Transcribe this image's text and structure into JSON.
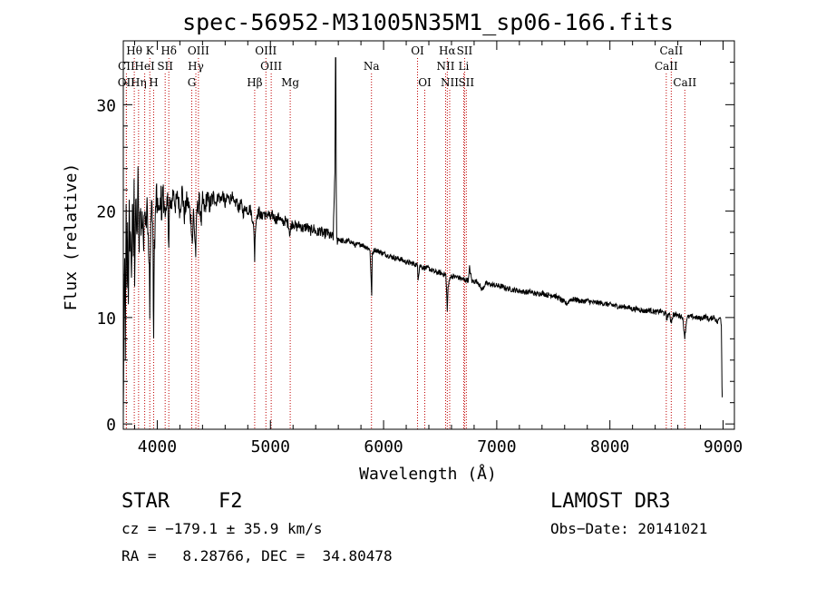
{
  "chart_data": {
    "type": "line",
    "title": "spec-56952-M31005N35M1_sp06-166.fits",
    "xlabel": "Wavelength (Å)",
    "ylabel": "Flux (relative)",
    "xlim": [
      3700,
      9100
    ],
    "ylim": [
      -0.5,
      36
    ],
    "xticks": [
      4000,
      5000,
      6000,
      7000,
      8000,
      9000
    ],
    "yticks": [
      0,
      10,
      20,
      30
    ],
    "grid": false,
    "series": [
      {
        "name": "spectrum",
        "anchors": [
          [
            3700,
            0.3
          ],
          [
            3705,
            9
          ],
          [
            3712,
            15
          ],
          [
            3718,
            7
          ],
          [
            3725,
            20
          ],
          [
            3732,
            12
          ],
          [
            3738,
            18
          ],
          [
            3745,
            11
          ],
          [
            3752,
            22
          ],
          [
            3758,
            15
          ],
          [
            3765,
            19
          ],
          [
            3772,
            13
          ],
          [
            3780,
            21
          ],
          [
            3788,
            16
          ],
          [
            3795,
            22
          ],
          [
            3800,
            14
          ],
          [
            3810,
            21
          ],
          [
            3820,
            17
          ],
          [
            3830,
            23
          ],
          [
            3840,
            16
          ],
          [
            3850,
            21
          ],
          [
            3860,
            18
          ],
          [
            3870,
            20
          ],
          [
            3880,
            16.5
          ],
          [
            3890,
            21.5
          ],
          [
            3900,
            19
          ],
          [
            3910,
            22
          ],
          [
            3920,
            17
          ],
          [
            3930,
            14
          ],
          [
            3934,
            9.5
          ],
          [
            3940,
            18
          ],
          [
            3950,
            21
          ],
          [
            3960,
            19
          ],
          [
            3968,
            8
          ],
          [
            3975,
            17
          ],
          [
            3985,
            20
          ],
          [
            3995,
            22
          ],
          [
            4000,
            19
          ],
          [
            4010,
            21
          ],
          [
            4020,
            19
          ],
          [
            4030,
            21.5
          ],
          [
            4040,
            20
          ],
          [
            4050,
            22
          ],
          [
            4060,
            20
          ],
          [
            4070,
            21
          ],
          [
            4080,
            19
          ],
          [
            4095,
            21
          ],
          [
            4102,
            17
          ],
          [
            4110,
            21
          ],
          [
            4120,
            20
          ],
          [
            4140,
            22
          ],
          [
            4160,
            20.5
          ],
          [
            4180,
            21.5
          ],
          [
            4200,
            20
          ],
          [
            4220,
            22
          ],
          [
            4240,
            19.5
          ],
          [
            4260,
            21
          ],
          [
            4280,
            20.5
          ],
          [
            4300,
            19
          ],
          [
            4310,
            17
          ],
          [
            4320,
            20
          ],
          [
            4330,
            18
          ],
          [
            4340,
            16
          ],
          [
            4350,
            20
          ],
          [
            4370,
            21
          ],
          [
            4390,
            19
          ],
          [
            4400,
            21
          ],
          [
            4420,
            20
          ],
          [
            4440,
            21.5
          ],
          [
            4460,
            20.5
          ],
          [
            4480,
            21
          ],
          [
            4500,
            21.3
          ],
          [
            4520,
            20.8
          ],
          [
            4540,
            21.5
          ],
          [
            4560,
            21
          ],
          [
            4580,
            21.6
          ],
          [
            4600,
            20.6
          ],
          [
            4620,
            21.4
          ],
          [
            4640,
            21
          ],
          [
            4660,
            21.5
          ],
          [
            4680,
            20.5
          ],
          [
            4700,
            21
          ],
          [
            4720,
            20.2
          ],
          [
            4740,
            20.8
          ],
          [
            4760,
            19.8
          ],
          [
            4780,
            20.4
          ],
          [
            4800,
            20
          ],
          [
            4820,
            20.3
          ],
          [
            4840,
            19.4
          ],
          [
            4855,
            18
          ],
          [
            4861,
            15.5
          ],
          [
            4868,
            18.6
          ],
          [
            4880,
            19.6
          ],
          [
            4900,
            20
          ],
          [
            4920,
            19.4
          ],
          [
            4940,
            19.9
          ],
          [
            4960,
            19.5
          ],
          [
            4980,
            19.8
          ],
          [
            5000,
            19.3
          ],
          [
            5020,
            19.6
          ],
          [
            5050,
            19.2
          ],
          [
            5080,
            19.5
          ],
          [
            5100,
            18.9
          ],
          [
            5130,
            19.1
          ],
          [
            5160,
            18.8
          ],
          [
            5172,
            17.8
          ],
          [
            5185,
            18.7
          ],
          [
            5200,
            18.9
          ],
          [
            5230,
            18.5
          ],
          [
            5260,
            18.7
          ],
          [
            5290,
            18.3
          ],
          [
            5320,
            18.6
          ],
          [
            5350,
            18.1
          ],
          [
            5380,
            18.4
          ],
          [
            5410,
            17.9
          ],
          [
            5440,
            18.2
          ],
          [
            5470,
            17.8
          ],
          [
            5500,
            18
          ],
          [
            5530,
            17.6
          ],
          [
            5555,
            17.6
          ],
          [
            5570,
            24
          ],
          [
            5575,
            34
          ],
          [
            5578,
            34
          ],
          [
            5582,
            22
          ],
          [
            5586,
            17.2
          ],
          [
            5600,
            17.4
          ],
          [
            5650,
            17.1
          ],
          [
            5700,
            17.2
          ],
          [
            5750,
            16.8
          ],
          [
            5800,
            16.9
          ],
          [
            5850,
            16.6
          ],
          [
            5880,
            16.4
          ],
          [
            5890,
            13.5
          ],
          [
            5895,
            12
          ],
          [
            5900,
            16
          ],
          [
            5920,
            16.4
          ],
          [
            5960,
            16.2
          ],
          [
            6000,
            16
          ],
          [
            6050,
            15.8
          ],
          [
            6100,
            15.6
          ],
          [
            6150,
            15.5
          ],
          [
            6200,
            15.2
          ],
          [
            6250,
            15.1
          ],
          [
            6300,
            14.9
          ],
          [
            6305,
            13.7
          ],
          [
            6320,
            14.9
          ],
          [
            6350,
            14.7
          ],
          [
            6400,
            14.6
          ],
          [
            6450,
            14.3
          ],
          [
            6500,
            14.2
          ],
          [
            6550,
            14
          ],
          [
            6556,
            12.5
          ],
          [
            6563,
            10.8
          ],
          [
            6570,
            12.8
          ],
          [
            6590,
            13.9
          ],
          [
            6650,
            13.8
          ],
          [
            6700,
            13.6
          ],
          [
            6750,
            13.5
          ],
          [
            6760,
            14.7
          ],
          [
            6780,
            13.4
          ],
          [
            6830,
            13.4
          ],
          [
            6870,
            12.6
          ],
          [
            6900,
            13.2
          ],
          [
            6950,
            13.1
          ],
          [
            7000,
            13
          ],
          [
            7050,
            12.9
          ],
          [
            7100,
            12.7
          ],
          [
            7150,
            12.6
          ],
          [
            7200,
            12.5
          ],
          [
            7250,
            12.4
          ],
          [
            7300,
            12.4
          ],
          [
            7350,
            12.2
          ],
          [
            7400,
            12.3
          ],
          [
            7450,
            12.1
          ],
          [
            7500,
            12.1
          ],
          [
            7550,
            11.8
          ],
          [
            7600,
            11.4
          ],
          [
            7620,
            11.3
          ],
          [
            7650,
            11.7
          ],
          [
            7700,
            11.7
          ],
          [
            7750,
            11.5
          ],
          [
            7800,
            11.6
          ],
          [
            7850,
            11.4
          ],
          [
            7900,
            11.4
          ],
          [
            7950,
            11.3
          ],
          [
            8000,
            11.2
          ],
          [
            8050,
            11.1
          ],
          [
            8100,
            11
          ],
          [
            8150,
            11
          ],
          [
            8200,
            10.8
          ],
          [
            8250,
            10.8
          ],
          [
            8300,
            10.6
          ],
          [
            8350,
            10.7
          ],
          [
            8400,
            10.5
          ],
          [
            8450,
            10.6
          ],
          [
            8498,
            10.3
          ],
          [
            8500,
            9.8
          ],
          [
            8520,
            10.4
          ],
          [
            8542,
            9.6
          ],
          [
            8560,
            10.3
          ],
          [
            8600,
            10.2
          ],
          [
            8640,
            10.1
          ],
          [
            8662,
            8.2
          ],
          [
            8680,
            10
          ],
          [
            8720,
            10.1
          ],
          [
            8760,
            10
          ],
          [
            8800,
            9.9
          ],
          [
            8840,
            10.1
          ],
          [
            8880,
            9.8
          ],
          [
            8920,
            10.1
          ],
          [
            8950,
            9.5
          ],
          [
            8975,
            10.2
          ],
          [
            8985,
            9.3
          ],
          [
            8990,
            3.5
          ],
          [
            8993,
            2.5
          ]
        ]
      }
    ],
    "lines": [
      {
        "label": "Hθ",
        "wavelength": 3797,
        "row": 0
      },
      {
        "label": "K",
        "wavelength": 3934,
        "row": 0
      },
      {
        "label": "Hδ",
        "wavelength": 4102,
        "row": 0
      },
      {
        "label": "OIII",
        "wavelength": 4364,
        "row": 0
      },
      {
        "label": "OIII",
        "wavelength": 4960,
        "row": 0
      },
      {
        "label": "OI",
        "wavelength": 6300,
        "row": 0
      },
      {
        "label": "Hα",
        "wavelength": 6563,
        "row": 0
      },
      {
        "label": "SII",
        "wavelength": 6716,
        "row": 0
      },
      {
        "label": "CaII",
        "wavelength": 8542,
        "row": 0
      },
      {
        "label": "CII",
        "wavelength": 3727,
        "row": 1
      },
      {
        "label": "HeI",
        "wavelength": 3889,
        "row": 1
      },
      {
        "label": "SII",
        "wavelength": 4070,
        "row": 1
      },
      {
        "label": "Hγ",
        "wavelength": 4341,
        "row": 1
      },
      {
        "label": "OIII",
        "wavelength": 5007,
        "row": 1
      },
      {
        "label": "Na",
        "wavelength": 5893,
        "row": 1
      },
      {
        "label": "NII",
        "wavelength": 6548,
        "row": 1
      },
      {
        "label": "Li",
        "wavelength": 6708,
        "row": 1
      },
      {
        "label": "CaII",
        "wavelength": 8498,
        "row": 1
      },
      {
        "label": "OII",
        "wavelength": 3727,
        "row": 2
      },
      {
        "label": "Hη",
        "wavelength": 3835,
        "row": 2
      },
      {
        "label": "H",
        "wavelength": 3968,
        "row": 2
      },
      {
        "label": "G",
        "wavelength": 4305,
        "row": 2
      },
      {
        "label": "Hβ",
        "wavelength": 4861,
        "row": 2
      },
      {
        "label": "Mg",
        "wavelength": 5175,
        "row": 2
      },
      {
        "label": "OI",
        "wavelength": 6364,
        "row": 2
      },
      {
        "label": "NII",
        "wavelength": 6584,
        "row": 2
      },
      {
        "label": "SII",
        "wavelength": 6731,
        "row": 2
      },
      {
        "label": "CaII",
        "wavelength": 8662,
        "row": 2
      }
    ],
    "line_color": "#c00000"
  },
  "info": {
    "object_class": "STAR",
    "subclass": "F2",
    "survey": "LAMOST DR3",
    "cz": "cz = −179.1 ± 35.9 km/s",
    "obs_date": "Obs−Date: 20141021",
    "radec": "RA =   8.28766, DEC =  34.80478"
  }
}
